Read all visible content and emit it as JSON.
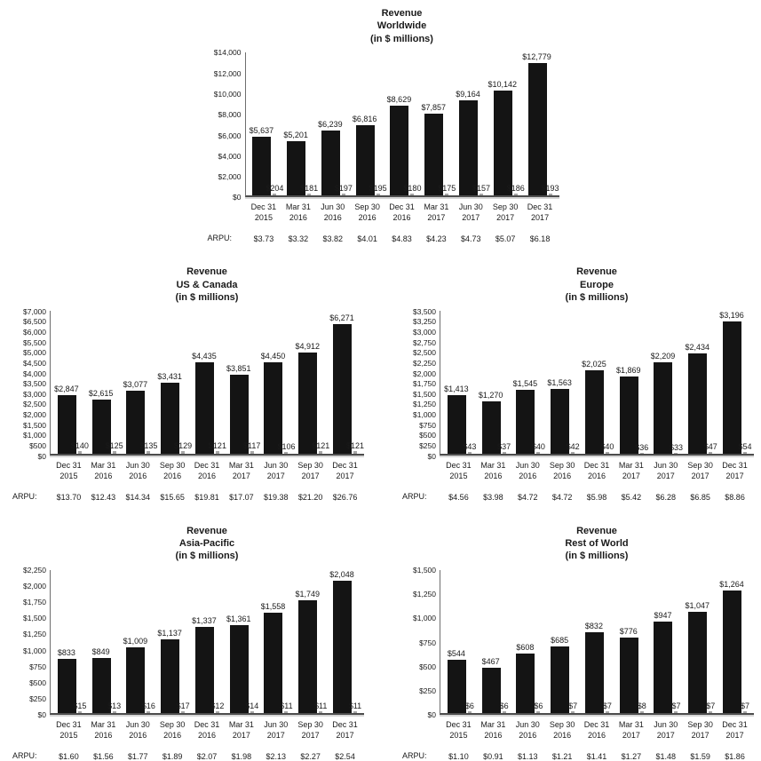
{
  "chart_data": {
    "type": "bar",
    "arpu_label": "ARPU:",
    "quarters_line1": [
      "Dec 31",
      "Mar 31",
      "Jun 30",
      "Sep 30",
      "Dec 31",
      "Mar 31",
      "Jun 30",
      "Sep 30",
      "Dec 31"
    ],
    "quarters_line2": [
      "2015",
      "2016",
      "2016",
      "2016",
      "2016",
      "2017",
      "2017",
      "2017",
      "2017"
    ],
    "charts": [
      {
        "title": [
          "Revenue",
          "Worldwide",
          "(in $ millions)"
        ],
        "y_max": 14000,
        "y_step": 2000,
        "revenue": [
          5637,
          5201,
          6239,
          6816,
          8629,
          7857,
          9164,
          10142,
          12779
        ],
        "revenue_labels": [
          "$5,637",
          "$5,201",
          "$6,239",
          "$6,816",
          "$8,629",
          "$7,857",
          "$9,164",
          "$10,142",
          "$12,779"
        ],
        "secondary": [
          204,
          181,
          197,
          195,
          180,
          175,
          157,
          186,
          193
        ],
        "secondary_labels": [
          "$204",
          "$181",
          "$197",
          "$195",
          "$180",
          "$175",
          "$157",
          "$186",
          "$193"
        ],
        "arpu": [
          "$3.73",
          "$3.32",
          "$3.82",
          "$4.01",
          "$4.83",
          "$4.23",
          "$4.73",
          "$5.07",
          "$6.18"
        ]
      },
      {
        "title": [
          "Revenue",
          "US & Canada",
          "(in $ millions)"
        ],
        "y_max": 7000,
        "y_step": 500,
        "revenue": [
          2847,
          2615,
          3077,
          3431,
          4435,
          3851,
          4450,
          4912,
          6271
        ],
        "revenue_labels": [
          "$2,847",
          "$2,615",
          "$3,077",
          "$3,431",
          "$4,435",
          "$3,851",
          "$4,450",
          "$4,912",
          "$6,271"
        ],
        "secondary": [
          140,
          125,
          135,
          129,
          121,
          117,
          106,
          121,
          121
        ],
        "secondary_labels": [
          "$140",
          "$125",
          "$135",
          "$129",
          "$121",
          "$117",
          "$106",
          "$121",
          "$121"
        ],
        "arpu": [
          "$13.70",
          "$12.43",
          "$14.34",
          "$15.65",
          "$19.81",
          "$17.07",
          "$19.38",
          "$21.20",
          "$26.76"
        ]
      },
      {
        "title": [
          "Revenue",
          "Europe",
          "(in $ millions)"
        ],
        "y_max": 3500,
        "y_step": 250,
        "revenue": [
          1413,
          1270,
          1545,
          1563,
          2025,
          1869,
          2209,
          2434,
          3196
        ],
        "revenue_labels": [
          "$1,413",
          "$1,270",
          "$1,545",
          "$1,563",
          "$2,025",
          "$1,869",
          "$2,209",
          "$2,434",
          "$3,196"
        ],
        "secondary": [
          43,
          37,
          40,
          42,
          40,
          36,
          33,
          47,
          54
        ],
        "secondary_labels": [
          "$43",
          "$37",
          "$40",
          "$42",
          "$40",
          "$36",
          "$33",
          "$47",
          "$54"
        ],
        "arpu": [
          "$4.56",
          "$3.98",
          "$4.72",
          "$4.72",
          "$5.98",
          "$5.42",
          "$6.28",
          "$6.85",
          "$8.86"
        ]
      },
      {
        "title": [
          "Revenue",
          "Asia-Pacific",
          "(in $ millions)"
        ],
        "y_max": 2250,
        "y_step": 250,
        "revenue": [
          833,
          849,
          1009,
          1137,
          1337,
          1361,
          1558,
          1749,
          2048
        ],
        "revenue_labels": [
          "$833",
          "$849",
          "$1,009",
          "$1,137",
          "$1,337",
          "$1,361",
          "$1,558",
          "$1,749",
          "$2,048"
        ],
        "secondary": [
          15,
          13,
          16,
          17,
          12,
          14,
          11,
          11,
          11
        ],
        "secondary_labels": [
          "$15",
          "$13",
          "$16",
          "$17",
          "$12",
          "$14",
          "$11",
          "$11",
          "$11"
        ],
        "arpu": [
          "$1.60",
          "$1.56",
          "$1.77",
          "$1.89",
          "$2.07",
          "$1.98",
          "$2.13",
          "$2.27",
          "$2.54"
        ]
      },
      {
        "title": [
          "Revenue",
          "Rest of World",
          "(in $ millions)"
        ],
        "y_max": 1500,
        "y_step": 250,
        "revenue": [
          544,
          467,
          608,
          685,
          832,
          776,
          947,
          1047,
          1264
        ],
        "revenue_labels": [
          "$544",
          "$467",
          "$608",
          "$685",
          "$832",
          "$776",
          "$947",
          "$1,047",
          "$1,264"
        ],
        "secondary": [
          6,
          6,
          6,
          7,
          7,
          8,
          7,
          7,
          7
        ],
        "secondary_labels": [
          "$6",
          "$6",
          "$6",
          "$7",
          "$7",
          "$8",
          "$7",
          "$7",
          "$7"
        ],
        "arpu": [
          "$1.10",
          "$0.91",
          "$1.13",
          "$1.21",
          "$1.41",
          "$1.27",
          "$1.48",
          "$1.59",
          "$1.86"
        ]
      }
    ]
  }
}
